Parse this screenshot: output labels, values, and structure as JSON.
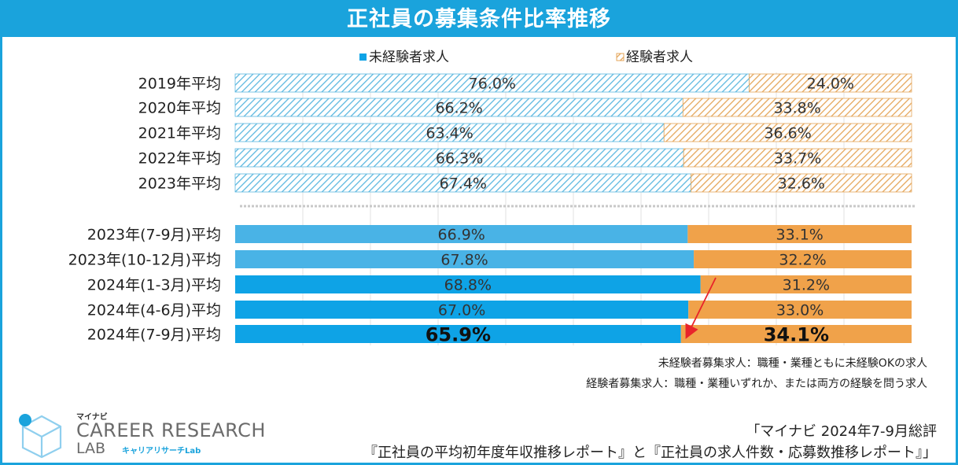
{
  "title": "正社員の募集条件比率推移",
  "chart_data": {
    "type": "bar",
    "orientation": "horizontal",
    "stacked": "100%",
    "categories": [
      "2019年平均",
      "2020年平均",
      "2021年平均",
      "2022年平均",
      "2023年平均",
      "2023年(7-9月)平均",
      "2023年(10-12月)平均",
      "2024年(1-3月)平均",
      "2024年(4-6月)平均",
      "2024年(7-9月)平均"
    ],
    "series": [
      {
        "name": "未経験者求人",
        "values": [
          76.0,
          66.2,
          63.4,
          66.3,
          67.4,
          66.9,
          67.8,
          68.8,
          67.0,
          65.9
        ],
        "labels": [
          "76.0%",
          "66.2%",
          "63.4%",
          "66.3%",
          "67.4%",
          "66.9%",
          "67.8%",
          "68.8%",
          "67.0%",
          "65.9%"
        ]
      },
      {
        "name": "経験者求人",
        "values": [
          24.0,
          33.8,
          36.6,
          33.7,
          32.6,
          33.1,
          32.2,
          31.2,
          33.0,
          34.1
        ],
        "labels": [
          "24.0%",
          "33.8%",
          "36.6%",
          "33.7%",
          "32.6%",
          "33.1%",
          "32.2%",
          "31.2%",
          "33.0%",
          "34.1%"
        ]
      }
    ],
    "xlim": [
      0,
      100
    ],
    "grid": true,
    "legend": "top-center"
  },
  "colors": {
    "title_bg": "#1aa3dc",
    "inexperienced_hatch": "#5cb8e0",
    "experienced_hatch": "#e5a65a",
    "inexperienced_q_light": "#49b3e6",
    "inexperienced_q": "#0ea3e6",
    "experienced_q": "#f0a24a",
    "arrow": "#e8242b"
  },
  "notes": {
    "line1": "未経験者募集求人：職種・業種ともに未経験OKの求人",
    "line2": "経験者募集求人：職種・業種いずれか、または両方の経験を問う求人"
  },
  "logo": {
    "small": "マイナビ",
    "line1": "CAREER RESEARCH",
    "line2": "LAB",
    "line3": "キャリアリサーチLab"
  },
  "source": {
    "line1": "「マイナビ 2024年7-9月総評",
    "line2": "『正社員の平均初年度年収推移レポート』と『正社員の求人件数・応募数推移レポート』」"
  }
}
